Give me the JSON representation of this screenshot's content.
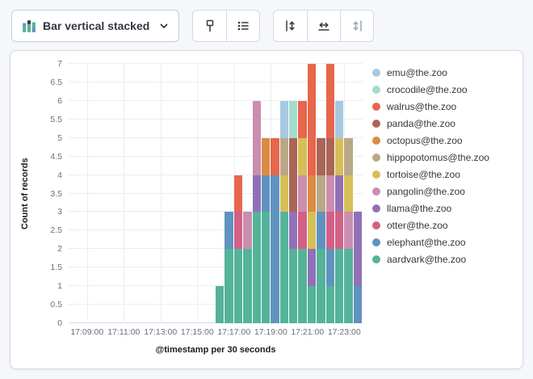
{
  "toolbar": {
    "chart_type_label": "Bar vertical stacked",
    "icons": [
      "stacked-bar-chart",
      "chevron-down",
      "visual-options",
      "legend",
      "left-axis",
      "bottom-axis",
      "right-axis"
    ]
  },
  "chart_data": {
    "type": "bar",
    "stacked": true,
    "title": "",
    "xlabel": "@timestamp per 30 seconds",
    "ylabel": "Count of records",
    "ylim": [
      0,
      7
    ],
    "y_ticks": [
      0,
      0.5,
      1,
      1.5,
      2,
      2.5,
      3,
      3.5,
      4,
      4.5,
      5,
      5.5,
      6,
      6.5,
      7
    ],
    "x_domain": [
      "17:08:00",
      "17:24:00"
    ],
    "x_ticks": [
      "17:09:00",
      "17:11:00",
      "17:13:00",
      "17:15:00",
      "17:17:00",
      "17:19:00",
      "17:21:00",
      "17:23:00"
    ],
    "bucket_seconds": 30,
    "grid": true,
    "legend_position": "right",
    "legend_order": [
      "emu@the.zoo",
      "crocodile@the.zoo",
      "walrus@the.zoo",
      "panda@the.zoo",
      "octopus@the.zoo",
      "hippopotomus@the.zoo",
      "tortoise@the.zoo",
      "pangolin@the.zoo",
      "llama@the.zoo",
      "otter@the.zoo",
      "elephant@the.zoo",
      "aardvark@the.zoo"
    ],
    "categories": [
      "17:16:00",
      "17:16:30",
      "17:17:00",
      "17:17:30",
      "17:18:00",
      "17:18:30",
      "17:19:00",
      "17:19:30",
      "17:20:00",
      "17:20:30",
      "17:21:00",
      "17:21:30",
      "17:22:00",
      "17:22:30",
      "17:23:00",
      "17:23:30"
    ],
    "series": [
      {
        "name": "aardvark@the.zoo",
        "color": "#54B399",
        "values": [
          1,
          2,
          2,
          2,
          3,
          3,
          0,
          3,
          2,
          2,
          1,
          2,
          1,
          2,
          2,
          0
        ]
      },
      {
        "name": "elephant@the.zoo",
        "color": "#6092C0",
        "values": [
          0,
          1,
          0,
          0,
          0,
          1,
          4,
          0,
          0,
          0,
          0,
          1,
          1,
          0,
          0,
          1
        ]
      },
      {
        "name": "otter@the.zoo",
        "color": "#D36086",
        "values": [
          0,
          0,
          1,
          0,
          0,
          0,
          0,
          0,
          0,
          1,
          0,
          0,
          1,
          1,
          0,
          0
        ]
      },
      {
        "name": "llama@the.zoo",
        "color": "#9170B8",
        "values": [
          0,
          0,
          0,
          0,
          1,
          0,
          0,
          0,
          1,
          0,
          1,
          0,
          0,
          1,
          0,
          2
        ]
      },
      {
        "name": "pangolin@the.zoo",
        "color": "#CA8EAE",
        "values": [
          0,
          0,
          0,
          1,
          2,
          0,
          0,
          0,
          0,
          1,
          0,
          0,
          1,
          0,
          1,
          0
        ]
      },
      {
        "name": "tortoise@the.zoo",
        "color": "#D6BF57",
        "values": [
          0,
          0,
          0,
          0,
          0,
          0,
          0,
          1,
          0,
          1,
          1,
          0,
          0,
          1,
          1,
          0
        ]
      },
      {
        "name": "hippopotomus@the.zoo",
        "color": "#B9A888",
        "values": [
          0,
          0,
          0,
          0,
          0,
          0,
          0,
          1,
          0,
          0,
          0,
          1,
          0,
          0,
          1,
          0
        ]
      },
      {
        "name": "octopus@the.zoo",
        "color": "#DA8B45",
        "values": [
          0,
          0,
          0,
          0,
          0,
          1,
          0,
          0,
          0,
          0,
          1,
          0,
          0,
          0,
          0,
          0
        ]
      },
      {
        "name": "panda@the.zoo",
        "color": "#AA6556",
        "values": [
          0,
          0,
          0,
          0,
          0,
          0,
          0,
          0,
          2,
          0,
          0,
          1,
          1,
          0,
          0,
          0
        ]
      },
      {
        "name": "walrus@the.zoo",
        "color": "#E7664C",
        "values": [
          0,
          0,
          1,
          0,
          0,
          0,
          1,
          0,
          0,
          1,
          3,
          0,
          2,
          0,
          0,
          0
        ]
      },
      {
        "name": "crocodile@the.zoo",
        "color": "#A4DBCD",
        "values": [
          0,
          0,
          0,
          0,
          0,
          0,
          0,
          0,
          1,
          0,
          0,
          0,
          0,
          0,
          0,
          0
        ]
      },
      {
        "name": "emu@the.zoo",
        "color": "#A6C9E2",
        "values": [
          0,
          0,
          0,
          0,
          0,
          0,
          0,
          1,
          0,
          0,
          0,
          0,
          0,
          1,
          0,
          0
        ]
      }
    ]
  }
}
